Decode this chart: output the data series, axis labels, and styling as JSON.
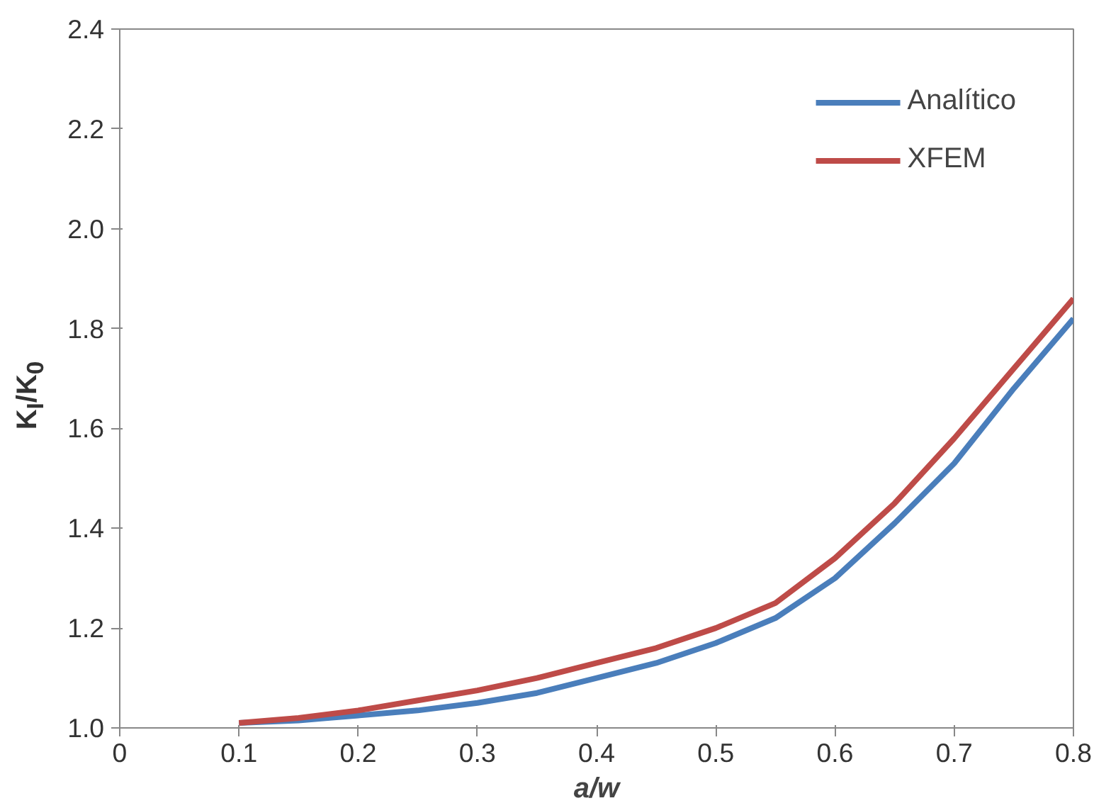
{
  "chart_data": {
    "type": "line",
    "xlabel": "a/w",
    "ylabel": "K$_{I}$/K$_{0}$",
    "x": [
      0.1,
      0.15,
      0.2,
      0.25,
      0.3,
      0.35,
      0.4,
      0.45,
      0.5,
      0.55,
      0.6,
      0.65,
      0.7,
      0.75,
      0.8
    ],
    "series": [
      {
        "name": "Analítico",
        "color": "#4a7ebb",
        "values": [
          1.01,
          1.015,
          1.025,
          1.035,
          1.05,
          1.07,
          1.1,
          1.13,
          1.17,
          1.22,
          1.3,
          1.41,
          1.53,
          1.68,
          1.82
        ]
      },
      {
        "name": "XFEM",
        "color": "#be4b48",
        "values": [
          1.01,
          1.02,
          1.035,
          1.055,
          1.075,
          1.1,
          1.13,
          1.16,
          1.2,
          1.25,
          1.34,
          1.45,
          1.58,
          1.72,
          1.86
        ]
      }
    ],
    "xlim": [
      0,
      0.8
    ],
    "ylim": [
      1.0,
      2.4
    ],
    "xticks": [
      0,
      0.1,
      0.2,
      0.3,
      0.4,
      0.5,
      0.6,
      0.7,
      0.8
    ],
    "yticks": [
      {
        "value": 1.0,
        "label": "1.0"
      },
      {
        "value": 1.2,
        "label": "1.2"
      },
      {
        "value": 1.4,
        "label": "1.4"
      },
      {
        "value": 1.6,
        "label": "1.6"
      },
      {
        "value": 1.8,
        "label": "1.8"
      },
      {
        "value": 2.0,
        "label": "2.0"
      },
      {
        "value": 2.2,
        "label": "2.2"
      },
      {
        "value": 2.4,
        "label": "2.4"
      }
    ],
    "grid": false,
    "legend": "top right",
    "marker": "none",
    "line_style": "solid"
  }
}
